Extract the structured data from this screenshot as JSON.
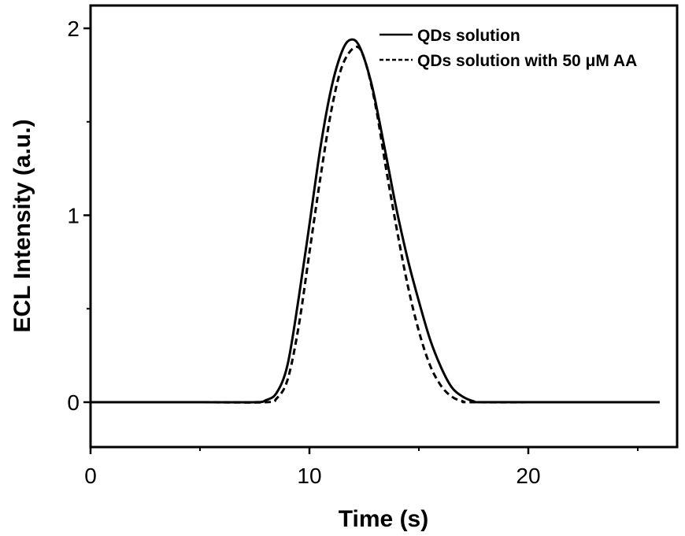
{
  "chart_data": {
    "type": "line",
    "title": "",
    "xlabel": "Time (s)",
    "ylabel": "ECL Intensity (a.u.)",
    "xlim": [
      0,
      26.5
    ],
    "ylim": [
      -0.23,
      2.12
    ],
    "x_ticks": [
      {
        "value": 0,
        "label": "0"
      },
      {
        "value": 10,
        "label": "10"
      },
      {
        "value": 20,
        "label": "20"
      }
    ],
    "x_minor_ticks": [
      5,
      15,
      25
    ],
    "y_ticks": [
      {
        "value": 0,
        "label": "0"
      },
      {
        "value": 1,
        "label": "1"
      },
      {
        "value": 2,
        "label": "2"
      }
    ],
    "y_minor_ticks": [
      0.5,
      1.5
    ],
    "grid": false,
    "legend_position": "top-right",
    "series": [
      {
        "name": "QDs solution",
        "line_style": "solid",
        "color": "#000000",
        "points": [
          [
            0,
            0
          ],
          [
            5,
            0
          ],
          [
            7.5,
            0
          ],
          [
            8.0,
            0.01
          ],
          [
            8.5,
            0.05
          ],
          [
            9.0,
            0.2
          ],
          [
            9.5,
            0.55
          ],
          [
            10.0,
            0.95
          ],
          [
            10.5,
            1.36
          ],
          [
            11.0,
            1.68
          ],
          [
            11.5,
            1.88
          ],
          [
            11.9,
            1.94
          ],
          [
            12.3,
            1.9
          ],
          [
            12.8,
            1.72
          ],
          [
            13.2,
            1.5
          ],
          [
            13.6,
            1.26
          ],
          [
            14.0,
            1.02
          ],
          [
            14.5,
            0.76
          ],
          [
            15.0,
            0.54
          ],
          [
            15.5,
            0.34
          ],
          [
            16.0,
            0.19
          ],
          [
            16.5,
            0.08
          ],
          [
            17.0,
            0.03
          ],
          [
            17.5,
            0.005
          ],
          [
            18.0,
            0
          ],
          [
            22,
            0
          ],
          [
            26,
            0
          ]
        ]
      },
      {
        "name": "QDs solution with 50 μM AA",
        "line_style": "dashed",
        "color": "#000000",
        "points": [
          [
            0,
            0
          ],
          [
            5,
            0
          ],
          [
            8.0,
            0
          ],
          [
            8.5,
            0.02
          ],
          [
            9.0,
            0.12
          ],
          [
            9.5,
            0.4
          ],
          [
            10.0,
            0.8
          ],
          [
            10.5,
            1.2
          ],
          [
            11.0,
            1.56
          ],
          [
            11.5,
            1.8
          ],
          [
            12.1,
            1.9
          ],
          [
            12.5,
            1.84
          ],
          [
            13.0,
            1.6
          ],
          [
            13.5,
            1.25
          ],
          [
            14.0,
            0.92
          ],
          [
            14.5,
            0.62
          ],
          [
            15.0,
            0.38
          ],
          [
            15.5,
            0.2
          ],
          [
            16.0,
            0.09
          ],
          [
            16.5,
            0.03
          ],
          [
            17.0,
            0.005
          ],
          [
            17.5,
            0
          ],
          [
            22,
            0
          ],
          [
            26,
            0
          ]
        ]
      }
    ]
  }
}
